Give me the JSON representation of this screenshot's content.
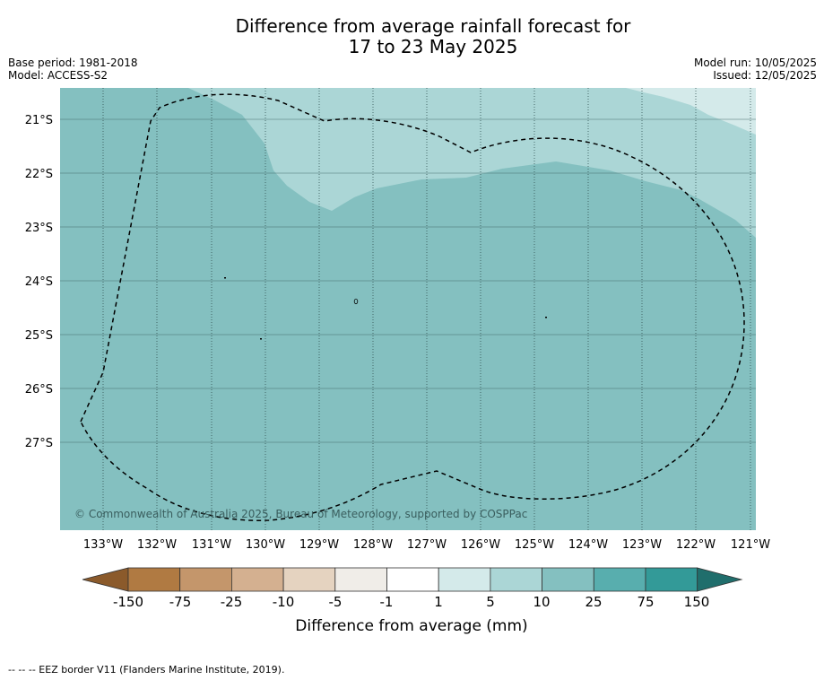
{
  "title_line1": "Difference from average rainfall forecast for",
  "title_line2": "17 to 23 May 2025",
  "base_period": "Base period: 1981-2018",
  "model": "Model: ACCESS-S2",
  "model_run": "Model run: 10/05/2025",
  "issued": "Issued: 12/05/2025",
  "copyright": "© Commonwealth of Australia 2025, Bureau of Meteorology, supported by COSPPac",
  "footnote": "-- -- -- EEZ border V11 (Flanders Marine Institute, 2019).",
  "lat_labels": [
    "21°S",
    "22°S",
    "23°S",
    "24°S",
    "25°S",
    "26°S",
    "27°S"
  ],
  "lon_labels": [
    "133°W",
    "132°W",
    "131°W",
    "130°W",
    "129°W",
    "128°W",
    "127°W",
    "126°W",
    "125°W",
    "124°W",
    "123°W",
    "122°W",
    "121°W"
  ],
  "legend": {
    "label": "Difference from average (mm)",
    "ticks": [
      "-150",
      "-75",
      "-25",
      "-10",
      "-5",
      "-1",
      "1",
      "5",
      "10",
      "25",
      "75",
      "150"
    ],
    "colors": [
      "#8B5A2B",
      "#B07A42",
      "#C4966B",
      "#D4B090",
      "#E5D3C0",
      "#F0EDE8",
      "#FFFFFF",
      "#D4EAEA",
      "#ABD6D6",
      "#84C0C0",
      "#58AEAE",
      "#339A98",
      "#206E6C"
    ]
  },
  "map_colors": {
    "band_25_75": "#84C0C0",
    "band_10_25": "#ABD6D6",
    "band_5_10": "#D4EAEA"
  }
}
